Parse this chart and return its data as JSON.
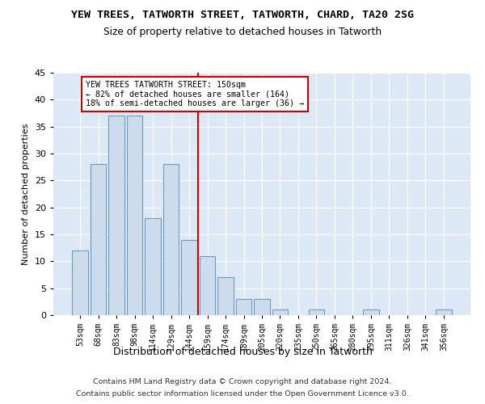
{
  "title1": "YEW TREES, TATWORTH STREET, TATWORTH, CHARD, TA20 2SG",
  "title2": "Size of property relative to detached houses in Tatworth",
  "xlabel": "Distribution of detached houses by size in Tatworth",
  "ylabel": "Number of detached properties",
  "categories": [
    "53sqm",
    "68sqm",
    "83sqm",
    "98sqm",
    "114sqm",
    "129sqm",
    "144sqm",
    "159sqm",
    "174sqm",
    "189sqm",
    "205sqm",
    "220sqm",
    "235sqm",
    "250sqm",
    "265sqm",
    "280sqm",
    "295sqm",
    "311sqm",
    "326sqm",
    "341sqm",
    "356sqm"
  ],
  "values": [
    12,
    28,
    37,
    37,
    18,
    28,
    14,
    11,
    7,
    3,
    3,
    1,
    0,
    1,
    0,
    0,
    1,
    0,
    0,
    0,
    1
  ],
  "bar_color": "#cddcec",
  "bar_edge_color": "#6a9cc0",
  "reference_line_label": "YEW TREES TATWORTH STREET: 150sqm",
  "annotation_line1": "← 82% of detached houses are smaller (164)",
  "annotation_line2": "18% of semi-detached houses are larger (36) →",
  "ylim": [
    0,
    45
  ],
  "yticks": [
    0,
    5,
    10,
    15,
    20,
    25,
    30,
    35,
    40,
    45
  ],
  "vline_color": "#cc0000",
  "annotation_box_color": "#cc0000",
  "bg_color": "#dce8f5",
  "footer1": "Contains HM Land Registry data © Crown copyright and database right 2024.",
  "footer2": "Contains public sector information licensed under the Open Government Licence v3.0."
}
